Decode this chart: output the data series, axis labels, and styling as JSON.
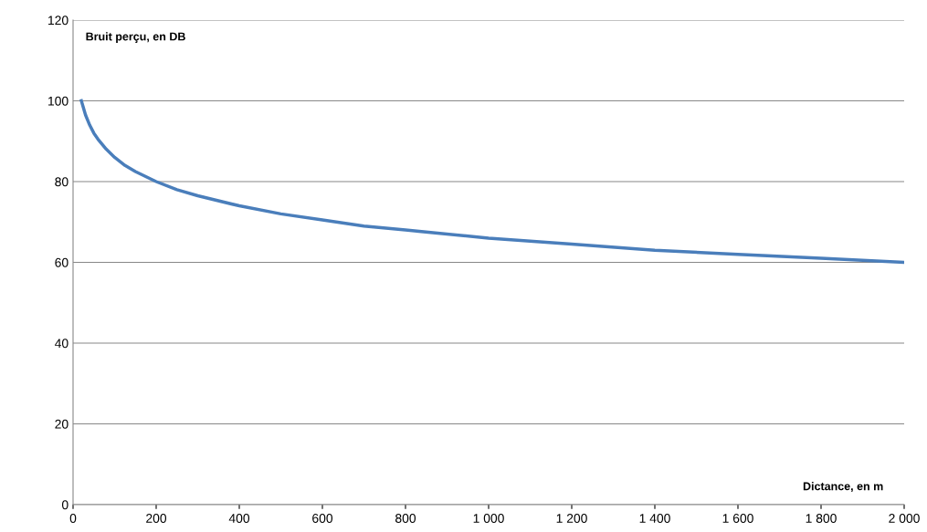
{
  "chart_data": {
    "type": "line",
    "xlabel": "Dictance, en m",
    "ylabel": "Bruit perçu, en DB",
    "x": [
      20,
      30,
      40,
      50,
      60,
      80,
      100,
      125,
      150,
      200,
      250,
      300,
      400,
      500,
      600,
      700,
      800,
      1000,
      1200,
      1400,
      1600,
      1800,
      2000
    ],
    "series": [
      {
        "color": "#4a7ebb",
        "values": [
          100,
          96.5,
          94,
          92,
          90.5,
          88,
          86,
          84,
          82.5,
          80,
          78,
          76.5,
          74,
          72,
          70.5,
          69,
          68,
          66,
          64.5,
          63,
          62,
          61,
          60
        ]
      }
    ],
    "xlim": [
      0,
      2000
    ],
    "ylim": [
      0,
      120
    ],
    "xticks": [
      0,
      200,
      400,
      600,
      800,
      {
        "value": 1000,
        "label": "1 000"
      },
      {
        "value": 1200,
        "label": "1 200"
      },
      {
        "value": 1400,
        "label": "1 400"
      },
      {
        "value": 1600,
        "label": "1 600"
      },
      {
        "value": 1800,
        "label": "1 800"
      },
      {
        "value": 2000,
        "label": "2 000"
      }
    ],
    "yticks": [
      0,
      20,
      40,
      60,
      80,
      100,
      120
    ],
    "grid": "y",
    "marker": "none",
    "line_style": "solid"
  }
}
